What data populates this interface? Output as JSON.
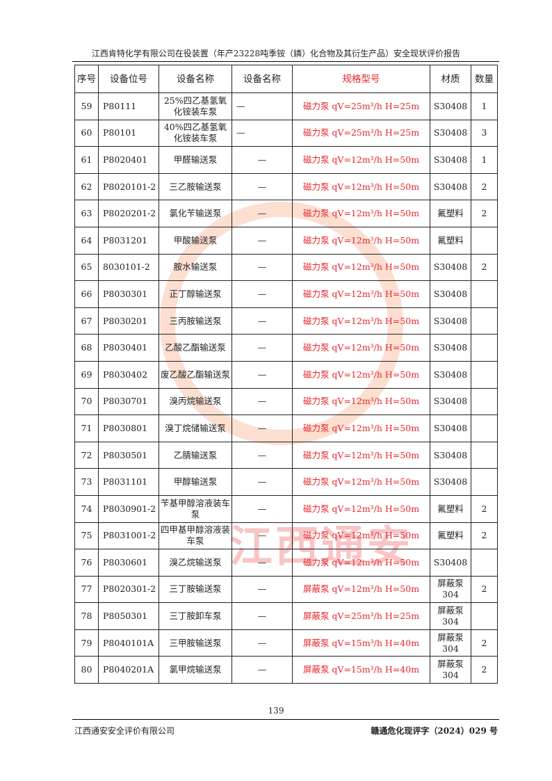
{
  "header": {
    "title": "江西肯特化学有限公司在役装置（年产23228吨季铵（鏻）化合物及其衍生产品）安全现状评价报告"
  },
  "table": {
    "columns": [
      "序号",
      "设备位号",
      "设备名称",
      "设备名称",
      "规格型号",
      "材质",
      "数量"
    ],
    "rows": [
      [
        "59",
        "P80111",
        "25%四乙基氢氧化铵装车泵",
        "—",
        "磁力泵 qV=25m³/h H=25m",
        "S30408",
        "1"
      ],
      [
        "60",
        "P80101",
        "40%四乙基氢氧化铵装车泵",
        "—",
        "磁力泵 qV=25m³/h H=25m",
        "S30408",
        "3"
      ],
      [
        "61",
        "P8020401",
        "甲醛输送泵",
        "—",
        "磁力泵 qV=12m³/h H=50m",
        "S30408",
        "1"
      ],
      [
        "62",
        "P8020101-2",
        "三乙胺输送泵",
        "—",
        "磁力泵 qV=12m³/h H=50m",
        "S30408",
        "2"
      ],
      [
        "63",
        "P8020201-2",
        "氯化苄输送泵",
        "—",
        "磁力泵 qV=12m³/h H=50m",
        "氟塑料",
        "2"
      ],
      [
        "64",
        "P8031201",
        "甲酸输送泵",
        "—",
        "磁力泵 qV=12m³/h H=50m",
        "氟塑料",
        ""
      ],
      [
        "65",
        "8030101-2",
        "胺水输送泵",
        "—",
        "磁力泵 qV=12m³/h H=50m",
        "S30408",
        "2"
      ],
      [
        "66",
        "P8030301",
        "正丁醇输送泵",
        "—",
        "磁力泵 qV=12m³/h H=50m",
        "S30408",
        ""
      ],
      [
        "67",
        "P8030201",
        "三丙胺输送泵",
        "—",
        "磁力泵 qV=12m³/h H=50m",
        "S30408",
        ""
      ],
      [
        "68",
        "P8030401",
        "乙酸乙酯输送泵",
        "—",
        "磁力泵 qV=12m³/h H=50m",
        "S30408",
        ""
      ],
      [
        "69",
        "P8030402",
        "废乙酸乙酯输送泵",
        "—",
        "磁力泵 qV=12m³/h H=50m",
        "S30408",
        ""
      ],
      [
        "70",
        "P8030701",
        "溴丙烷输送泵",
        "—",
        "磁力泵 qV=12m³/h H=50m",
        "S30408",
        ""
      ],
      [
        "71",
        "P8030801",
        "溴丁烷储输送泵",
        "—",
        "磁力泵 qV=12m³/h H=50m",
        "S30408",
        ""
      ],
      [
        "72",
        "P8030501",
        "乙腈输送泵",
        "—",
        "磁力泵 qV=12m³/h H=50m",
        "S30408",
        ""
      ],
      [
        "73",
        "P8031101",
        "甲醇输送泵",
        "—",
        "磁力泵 qV=12m³/h H=50m",
        "S30408",
        ""
      ],
      [
        "74",
        "P8030901-2",
        "苄基甲醇溶液装车泵",
        "—",
        "磁力泵 qV=12m³/h H=50m",
        "氟塑料",
        "2"
      ],
      [
        "75",
        "P8031001-2",
        "四甲基甲醇溶液装车泵",
        "—",
        "磁力泵 qV=12m³/h H=50m",
        "氟塑料",
        "2"
      ],
      [
        "76",
        "P8030601",
        "溴乙烷输送泵",
        "—",
        "磁力泵 qV=12m³/h H=50m",
        "S30408",
        ""
      ],
      [
        "77",
        "P8020301-2",
        "三丁胺输送泵",
        "—",
        "屏蔽泵 qV=12m³/h H=50m",
        "屏蔽泵304",
        "2"
      ],
      [
        "78",
        "P8050301",
        "三丁胺卸车泵",
        "—",
        "屏蔽泵 qV=25m³/h H=25m",
        "屏蔽泵304",
        ""
      ],
      [
        "79",
        "P8040101A",
        "三甲胺输送泵",
        "—",
        "屏蔽泵 qV=15m³/h H=40m",
        "屏蔽泵304",
        "2"
      ],
      [
        "80",
        "P8040201A",
        "氯甲烷输送泵",
        "—",
        "屏蔽泵 qV=15m³/h H=40m",
        "屏蔽泵304",
        "2"
      ]
    ]
  },
  "watermark": {
    "text": "江西通安",
    "color": "#e8262c"
  },
  "footer": {
    "page": "139",
    "company": "江西通安安全评价有限公司",
    "doc_no": "赣通危化现评字（2024）029 号"
  },
  "colors": {
    "spec_text": "#e8262c"
  }
}
